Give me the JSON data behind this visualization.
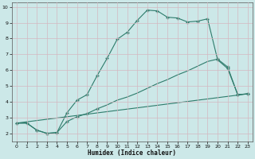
{
  "xlabel": "Humidex (Indice chaleur)",
  "bg_color": "#cce8e8",
  "line_color": "#2d7b6b",
  "grid_color": "#b8d8d8",
  "xlim": [
    -0.5,
    23.5
  ],
  "ylim": [
    1.5,
    10.3
  ],
  "xticks": [
    0,
    1,
    2,
    3,
    4,
    5,
    6,
    7,
    8,
    9,
    10,
    11,
    12,
    13,
    14,
    15,
    16,
    17,
    18,
    19,
    20,
    21,
    22,
    23
  ],
  "yticks": [
    2,
    3,
    4,
    5,
    6,
    7,
    8,
    9,
    10
  ],
  "curve1_x": [
    0,
    1,
    2,
    3,
    4,
    5,
    6,
    7,
    8,
    9,
    10,
    11,
    12,
    13,
    14,
    15,
    16,
    17,
    18,
    19,
    20,
    21,
    22,
    23
  ],
  "curve1_y": [
    2.65,
    2.65,
    2.2,
    2.0,
    2.05,
    3.3,
    4.1,
    4.45,
    5.65,
    6.75,
    7.95,
    8.4,
    9.15,
    9.8,
    9.75,
    9.35,
    9.3,
    9.05,
    9.1,
    9.25,
    6.65,
    6.1,
    4.45,
    4.5
  ],
  "curve1_marker_x": [
    0,
    1,
    2,
    3,
    4,
    5,
    6,
    7,
    8,
    9,
    10,
    11,
    12,
    13,
    14,
    15,
    16,
    17,
    18,
    19,
    20,
    21,
    22,
    23
  ],
  "curve1_marker_y": [
    2.65,
    2.65,
    2.2,
    2.0,
    2.05,
    3.3,
    4.1,
    4.45,
    5.65,
    6.75,
    7.95,
    8.4,
    9.15,
    9.8,
    9.75,
    9.35,
    9.3,
    9.05,
    9.1,
    9.25,
    6.65,
    6.1,
    4.45,
    4.5
  ],
  "curve2_x": [
    0,
    1,
    2,
    3,
    4,
    5,
    6,
    7,
    8,
    9,
    10,
    11,
    12,
    13,
    14,
    15,
    16,
    17,
    18,
    19,
    20,
    21,
    22,
    23
  ],
  "curve2_y": [
    2.65,
    2.65,
    2.2,
    2.0,
    2.05,
    2.75,
    3.05,
    3.25,
    3.55,
    3.8,
    4.1,
    4.3,
    4.55,
    4.85,
    5.15,
    5.4,
    5.7,
    5.95,
    6.25,
    6.55,
    6.7,
    6.2,
    4.45,
    4.5
  ],
  "curve2_marker_x": [
    0,
    2,
    3,
    4,
    5,
    6,
    7,
    8,
    20,
    21,
    22,
    23
  ],
  "curve2_marker_y": [
    2.65,
    2.2,
    2.0,
    2.05,
    2.75,
    3.05,
    3.25,
    3.55,
    6.7,
    6.2,
    4.45,
    4.5
  ],
  "curve3_x": [
    0,
    23
  ],
  "curve3_y": [
    2.65,
    4.5
  ]
}
